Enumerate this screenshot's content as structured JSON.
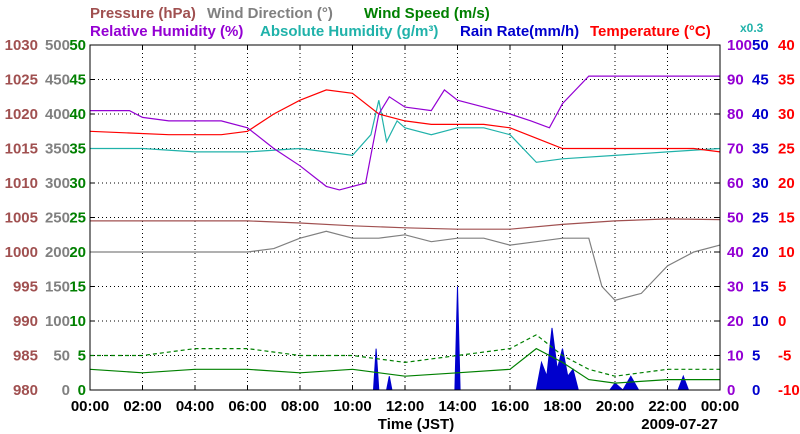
{
  "chart_data": {
    "type": "line",
    "date": "2009-07-27",
    "xlabel": "Time (JST)",
    "x_ticks": [
      "00:00",
      "02:00",
      "04:00",
      "06:00",
      "08:00",
      "10:00",
      "12:00",
      "14:00",
      "16:00",
      "18:00",
      "20:00",
      "22:00",
      "00:00"
    ],
    "x_range_hours": [
      0,
      24
    ],
    "top_legend": [
      {
        "text": "Pressure (hPa)",
        "color": "#a05050"
      },
      {
        "text": "Wind Direction (°)",
        "color": "#808080"
      },
      {
        "text": "Wind Speed (m/s)",
        "color": "#008000"
      }
    ],
    "second_legend": [
      {
        "text": "Relative Humidity (%)",
        "color": "#9400d3"
      },
      {
        "text": "Absolute Humidity (g/m³)",
        "color": "#20b2aa"
      },
      {
        "text": "Rain Rate(mm/h)",
        "color": "#0000cd"
      },
      {
        "text": "Temperature (°C)",
        "color": "#ff0000"
      }
    ],
    "scale_note": "x0.3",
    "axes": {
      "pressure": {
        "range": [
          980,
          1030
        ],
        "ticks": [
          "1030",
          "1025",
          "1020",
          "1015",
          "1010",
          "1005",
          "1000",
          "995",
          "990",
          "985",
          "980"
        ],
        "color": "#a05050"
      },
      "wind_direction": {
        "range": [
          0,
          500
        ],
        "ticks": [
          "500",
          "450",
          "400",
          "350",
          "300",
          "250",
          "200",
          "150",
          "100",
          "50",
          "0"
        ],
        "color": "#808080"
      },
      "wind_speed": {
        "range": [
          0,
          50
        ],
        "ticks": [
          "50",
          "45",
          "40",
          "35",
          "30",
          "25",
          "20",
          "15",
          "10",
          "5",
          "0"
        ],
        "color": "#008000"
      },
      "relative_humidity": {
        "range": [
          0,
          100
        ],
        "ticks": [
          "100",
          "90",
          "80",
          "70",
          "60",
          "50",
          "40",
          "30",
          "20",
          "10",
          "0"
        ],
        "color": "#9400d3"
      },
      "absolute_humidity_rain": {
        "range": [
          0,
          50
        ],
        "ticks": [
          "50",
          "45",
          "40",
          "35",
          "30",
          "25",
          "20",
          "15",
          "10",
          "5",
          "0"
        ],
        "color": "#0000cd"
      },
      "temperature": {
        "range": [
          -10,
          40
        ],
        "ticks": [
          "40",
          "35",
          "30",
          "25",
          "20",
          "15",
          "10",
          "5",
          "0",
          "-5",
          "-10"
        ],
        "color": "#ff0000"
      }
    },
    "series": [
      {
        "name": "Relative Humidity",
        "axis": "relative_humidity",
        "color": "#9400d3",
        "points": [
          [
            0,
            81
          ],
          [
            1.5,
            81
          ],
          [
            2,
            79
          ],
          [
            3,
            78
          ],
          [
            5,
            78
          ],
          [
            6,
            76
          ],
          [
            7,
            70
          ],
          [
            8,
            65
          ],
          [
            9,
            59
          ],
          [
            9.5,
            58
          ],
          [
            10.5,
            60
          ],
          [
            10.8,
            72
          ],
          [
            11,
            80
          ],
          [
            11.4,
            85
          ],
          [
            12,
            82
          ],
          [
            13,
            81
          ],
          [
            13.5,
            87
          ],
          [
            14,
            84
          ],
          [
            15,
            82
          ],
          [
            16,
            80
          ],
          [
            16.8,
            78
          ],
          [
            17.5,
            76
          ],
          [
            18,
            83
          ],
          [
            19,
            91
          ],
          [
            21,
            91
          ],
          [
            23,
            91
          ],
          [
            24,
            91
          ]
        ]
      },
      {
        "name": "Temperature",
        "axis": "temperature",
        "color": "#ff0000",
        "points": [
          [
            0,
            27.5
          ],
          [
            3,
            27
          ],
          [
            5,
            27
          ],
          [
            6,
            27.5
          ],
          [
            7,
            30
          ],
          [
            8,
            32
          ],
          [
            9,
            33.5
          ],
          [
            10,
            33
          ],
          [
            11,
            30
          ],
          [
            12,
            29
          ],
          [
            13,
            28.5
          ],
          [
            14,
            28.5
          ],
          [
            15,
            28.5
          ],
          [
            16,
            28
          ],
          [
            17,
            26.5
          ],
          [
            18,
            25
          ],
          [
            20,
            25
          ],
          [
            22,
            25
          ],
          [
            23,
            25
          ],
          [
            24,
            24.5
          ]
        ]
      },
      {
        "name": "Absolute Humidity",
        "axis": "absolute_humidity_rain",
        "color": "#20b2aa",
        "points": [
          [
            0,
            35
          ],
          [
            2,
            35
          ],
          [
            4,
            34.5
          ],
          [
            6,
            34.5
          ],
          [
            8,
            35
          ],
          [
            9,
            34.5
          ],
          [
            10,
            34
          ],
          [
            10.7,
            37
          ],
          [
            11,
            42
          ],
          [
            11.3,
            36
          ],
          [
            11.7,
            39
          ],
          [
            12,
            38
          ],
          [
            13,
            37
          ],
          [
            14,
            38
          ],
          [
            15,
            38
          ],
          [
            16,
            37
          ],
          [
            17,
            33
          ],
          [
            18,
            33.5
          ],
          [
            20,
            34
          ],
          [
            22,
            34.5
          ],
          [
            24,
            35
          ]
        ]
      },
      {
        "name": "Pressure",
        "axis": "pressure",
        "color": "#a05050",
        "points": [
          [
            0,
            1004.5
          ],
          [
            6,
            1004.5
          ],
          [
            8,
            1004.2
          ],
          [
            10,
            1003.8
          ],
          [
            12,
            1003.5
          ],
          [
            14,
            1003.3
          ],
          [
            16,
            1003.3
          ],
          [
            18,
            1004
          ],
          [
            20,
            1004.5
          ],
          [
            22,
            1004.8
          ],
          [
            24,
            1004.7
          ]
        ]
      },
      {
        "name": "Wind Direction",
        "axis": "wind_direction",
        "color": "#808080",
        "points": [
          [
            0,
            200
          ],
          [
            1,
            200
          ],
          [
            1.5,
            200
          ],
          [
            2,
            200
          ],
          [
            3,
            200
          ],
          [
            4,
            200
          ],
          [
            5,
            200
          ],
          [
            6,
            200
          ],
          [
            7,
            205
          ],
          [
            8,
            220
          ],
          [
            9,
            230
          ],
          [
            10,
            220
          ],
          [
            11,
            220
          ],
          [
            12,
            225
          ],
          [
            13,
            215
          ],
          [
            14,
            220
          ],
          [
            15,
            220
          ],
          [
            16,
            210
          ],
          [
            17,
            215
          ],
          [
            18,
            220
          ],
          [
            19,
            220
          ],
          [
            19.5,
            150
          ],
          [
            20,
            130
          ],
          [
            21,
            140
          ],
          [
            22,
            180
          ],
          [
            23,
            200
          ],
          [
            24,
            210
          ]
        ]
      },
      {
        "name": "Wind Speed",
        "axis": "wind_speed",
        "color": "#008000",
        "points": [
          [
            0,
            3
          ],
          [
            2,
            2.5
          ],
          [
            4,
            3
          ],
          [
            6,
            3
          ],
          [
            8,
            2.5
          ],
          [
            10,
            3
          ],
          [
            12,
            2
          ],
          [
            14,
            2.5
          ],
          [
            16,
            3
          ],
          [
            17,
            6
          ],
          [
            18,
            4
          ],
          [
            19,
            1.5
          ],
          [
            20,
            1
          ],
          [
            22,
            1.5
          ],
          [
            24,
            1.5
          ]
        ]
      },
      {
        "name": "Wind Speed (gust)",
        "axis": "wind_speed",
        "color": "#008000",
        "dashed": true,
        "points": [
          [
            0,
            5
          ],
          [
            2,
            5
          ],
          [
            4,
            6
          ],
          [
            6,
            6
          ],
          [
            8,
            5
          ],
          [
            10,
            5
          ],
          [
            12,
            4
          ],
          [
            14,
            5
          ],
          [
            16,
            6
          ],
          [
            17,
            8
          ],
          [
            18,
            5
          ],
          [
            19,
            3
          ],
          [
            20,
            2
          ],
          [
            22,
            3
          ],
          [
            24,
            3
          ]
        ]
      },
      {
        "name": "Rain Rate",
        "axis": "absolute_humidity_rain",
        "color": "#0000cd",
        "type": "area",
        "points": [
          [
            10.8,
            0
          ],
          [
            10.9,
            6
          ],
          [
            11.0,
            0
          ],
          [
            11.3,
            0
          ],
          [
            11.4,
            2
          ],
          [
            11.5,
            0
          ],
          [
            13.9,
            0
          ],
          [
            14.0,
            15
          ],
          [
            14.1,
            0
          ],
          [
            17.0,
            0
          ],
          [
            17.2,
            4
          ],
          [
            17.4,
            2
          ],
          [
            17.6,
            9
          ],
          [
            17.8,
            3
          ],
          [
            18.0,
            6
          ],
          [
            18.2,
            2
          ],
          [
            18.4,
            3
          ],
          [
            18.6,
            0
          ],
          [
            19.8,
            0
          ],
          [
            20.0,
            1
          ],
          [
            20.3,
            0
          ],
          [
            20.6,
            2
          ],
          [
            20.9,
            0
          ],
          [
            22.4,
            0
          ],
          [
            22.6,
            2
          ],
          [
            22.8,
            0
          ]
        ]
      }
    ]
  }
}
